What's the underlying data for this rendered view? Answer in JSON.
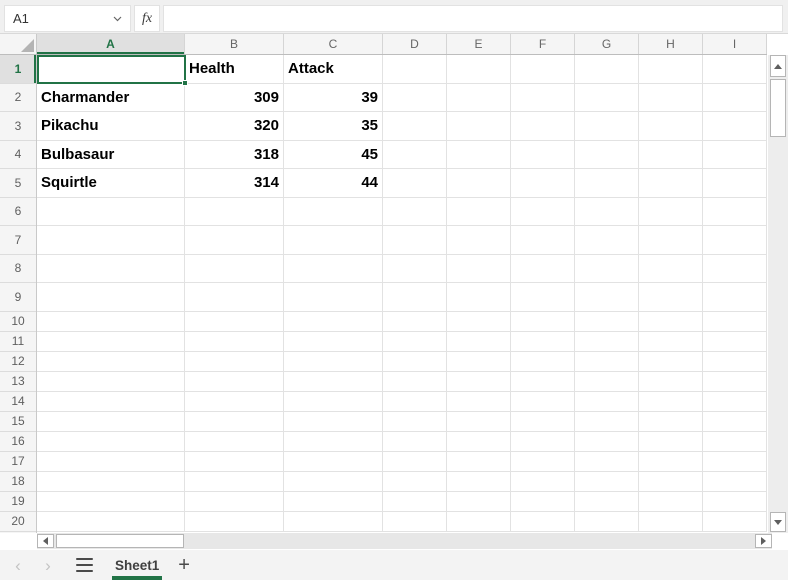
{
  "name_box": {
    "value": "A1"
  },
  "formula_bar": {
    "fx_label": "fx",
    "value": ""
  },
  "grid": {
    "column_headers": [
      "A",
      "B",
      "C",
      "D",
      "E",
      "F",
      "G",
      "H",
      "I"
    ],
    "row_headers": [
      "1",
      "2",
      "3",
      "4",
      "5",
      "6",
      "7",
      "8",
      "9",
      "10",
      "11",
      "12",
      "13",
      "14",
      "15",
      "16",
      "17",
      "18",
      "19",
      "20"
    ],
    "selected_cell": "A1",
    "selected_column": "A",
    "selected_row": "1",
    "cell_rows": [
      [
        "",
        "Health",
        "Attack"
      ],
      [
        "Charmander",
        "309",
        "39"
      ],
      [
        "Pikachu",
        "320",
        "35"
      ],
      [
        "Bulbasaur",
        "318",
        "45"
      ],
      [
        "Squirtle",
        "314",
        "44"
      ]
    ]
  },
  "sheet_bar": {
    "active_tab": "Sheet1",
    "add_sheet_label": "+"
  },
  "colors": {
    "accent_green": "#217346",
    "selection_border": "#217346"
  }
}
